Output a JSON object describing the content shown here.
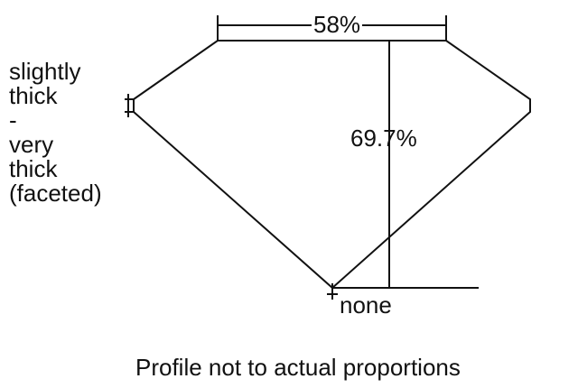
{
  "girdle_label": [
    "slightly",
    "thick",
    "-",
    "very",
    "thick",
    "(faceted)"
  ],
  "table_label": "58%",
  "depth_label": "69.7%",
  "culet_label": "none",
  "caption": "Profile not to actual proportions",
  "line_color": "#111111"
}
